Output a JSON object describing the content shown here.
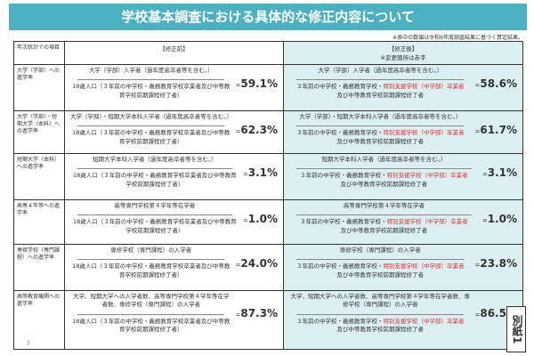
{
  "title": "学校基本調査における具体的な修正内容について",
  "note": "※表中の数値は令和6年度調査結果に基づく算定結果。",
  "header": {
    "item": "年次統計での項目",
    "before": "【修正前】",
    "after": "【修正後】",
    "after_note": "※変更箇所は赤字"
  },
  "rows": [
    {
      "label": "大学（学部）への進学率",
      "before_num": "大学（学部）入学者（過年度高卒者等を含む。）",
      "before_den": "18歳人口（３年前の中学校・義務教育学校卒業者及び中等教育学校前期課程修了者）",
      "before_val": "59.1%",
      "after_num": "大学（学部）入学者（過年度高卒者等を含む。）",
      "after_den_a": "３年前の中学校・義務教育学校・",
      "after_den_red": "特別支援学校（中学部）卒業者",
      "after_den_b": "及び中等教育学校前期課程修了者",
      "after_val": "58.6%"
    },
    {
      "label": "大学（学部）・短期大学（本科）への進学率",
      "before_num": "大学（学部）・短期大学本科入学者（過年度高卒者等を含む。）",
      "before_den": "18歳人口（３年前の中学校・義務教育学校卒業者及び中等教育学校前期課程修了者）",
      "before_val": "62.3%",
      "after_num": "大学（学部）・短期大学本科入学者（過年度高卒者等を含む。）",
      "after_den_a": "３年前の中学校・義務教育学校・",
      "after_den_red": "特別支援学校（中学部）卒業者",
      "after_den_b": "及び中等教育学校前期課程修了者",
      "after_val": "61.7%"
    },
    {
      "label": "短期大学（本科）への進学率",
      "before_num": "短期大学本科入学者（過年度高卒者等を含む。）",
      "before_den": "18歳人口（３年前の中学校・義務教育学校卒業者及び中等教育学校前期課程修了者）",
      "before_val": "3.1%",
      "after_num": "短期大学本科入学者（過年度高卒者等を含む。）",
      "after_den_a": "３年前の中学校・義務教育学校・",
      "after_den_red": "特別支援学校（中学部）卒業者",
      "after_den_b": "及び中等教育学校前期課程修了者",
      "after_val": "3.1%"
    },
    {
      "label": "高専４年等への進学率",
      "before_num": "高等専門学校第４学年等在学者",
      "before_den": "18歳人口（３年前の中学校・義務教育学校卒業者及び中等教育学校前期課程修了者）",
      "before_val": "1.0%",
      "after_num": "高等専門学校第４学年等在学者",
      "after_den_a": "３年前の中学校・義務教育学校・",
      "after_den_red": "特別支援学校（中学部）卒業者",
      "after_den_b": "及び中等教育学校前期課程修了者",
      "after_val": "1.0%"
    },
    {
      "label": "専修学校（専門課程）への進学率",
      "before_num": "専修学校（専門課程）の入学者",
      "before_den": "18歳人口（３年前の中学校・義務教育学校卒業者及び中等教育学校前期課程修了者）",
      "before_val": "24.0%",
      "after_num": "専修学校（専門課程）の入学者",
      "after_den_a": "３年前の中学校・義務教育学校・",
      "after_den_red": "特別支援学校（中学部）卒業者",
      "after_den_b": "及び中等教育学校前期課程修了者",
      "after_val": "23.8%"
    },
    {
      "label": "高等教育機関への進学率",
      "before_num": "大学、短期大学への入学者数、高等専門学校第４学年等在学者数、専修学校（専門課程）の入学者",
      "before_den": "18歳人口（３年前の中学校・義務教育学校卒業者及び中等教育学校前期課程修了者）",
      "before_val": "87.3%",
      "after_num": "大学、短期大学への入学者数、高等専門学校第４学年等在学者数、専修学校（専門課程）の入学者",
      "after_den_a": "３年前の中学校・義務教育学校・",
      "after_den_red": "特別支援学校（中学部）卒業者",
      "after_den_b": "及び中等教育学校前期課程修了者",
      "after_val": "86.5%"
    }
  ],
  "eq": "=",
  "bessi": "別紙1",
  "page": "7",
  "colors": {
    "title_bg": "#4bb0c0",
    "after_bg": "#dcf0f4",
    "highlight": "#e03030"
  }
}
